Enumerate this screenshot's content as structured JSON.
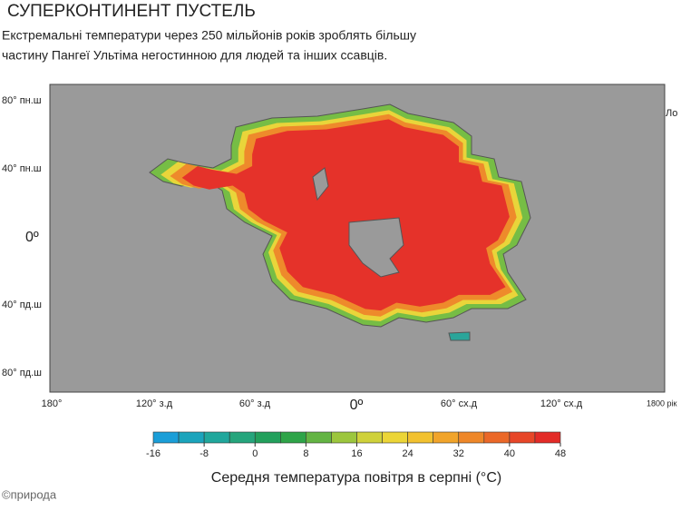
{
  "header": {
    "title": "СУПЕРКОНТИНЕНТ ПУСТЕЛЬ",
    "subtitle": [
      "Екстремальні температури через 250 мільйонів років зроблять більшу",
      "частину Пангеї Ультіма негостинною для людей та інших ссавців."
    ]
  },
  "map": {
    "lat_labels": [
      "80° пн.ш",
      "40° пн.ш",
      "0º",
      "40° пд.ш",
      "80° пд.ш"
    ],
    "lon_labels": [
      "180°",
      "120° з.д",
      "60° з.д",
      "0º",
      "60° сх.д",
      "120° сх.д",
      "1800 рік"
    ],
    "side_label": "Ло"
  },
  "colorbar": {
    "range": [
      -16,
      48
    ],
    "ticks": [
      -16,
      -8,
      0,
      8,
      16,
      24,
      32,
      40,
      48
    ],
    "colors": [
      "#1a9ed8",
      "#1ba4bc",
      "#20a79c",
      "#25a57c",
      "#22a05c",
      "#2ea448",
      "#63b443",
      "#9cc63d",
      "#cfd13a",
      "#ecd537",
      "#f2c12f",
      "#f1a42a",
      "#ee8729",
      "#eb6828",
      "#e74628",
      "#e32b27"
    ],
    "label": "Середня температура повітря в серпні (°С)"
  },
  "credit": "©природа"
}
